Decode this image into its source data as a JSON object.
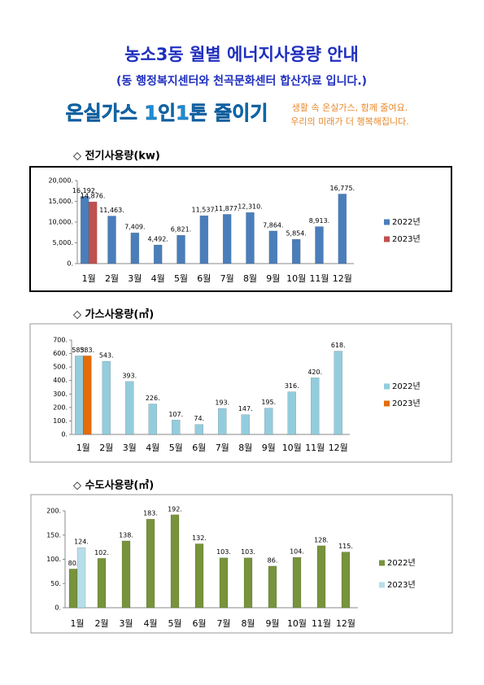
{
  "header": {
    "title": "농소3동 월별 에너지사용량 안내",
    "subtitle": "(동 행정복지센터와 천곡문화센터 합산자료 입니다.)",
    "banner": {
      "slogan": "온실가스 1인1톤 줄이기",
      "lines": [
        "생활 속 온실가스, 함께 줄여요.",
        "우리의 미래가 더 행복해집니다."
      ]
    }
  },
  "chart_data": [
    {
      "type": "bar",
      "title": "◇ 전기사용량(kw)",
      "categories": [
        "1월",
        "2월",
        "3월",
        "4월",
        "5월",
        "6월",
        "7월",
        "8월",
        "9월",
        "10월",
        "11월",
        "12월"
      ],
      "series": [
        {
          "name": "2022년",
          "color": "#4a7ebb",
          "values": [
            16192,
            11463,
            7409,
            4492,
            6821,
            11537,
            11877,
            12310,
            7864,
            5854,
            8913,
            16775
          ],
          "value_labels": [
            "16,192.",
            "11,463.",
            "7,409.",
            "4,492.",
            "6,821.",
            "11,537.",
            "11,877.",
            "12,310.",
            "7,864.",
            "5,854.",
            "8,913.",
            "16,775."
          ]
        },
        {
          "name": "2023년",
          "color": "#c0504d",
          "values": [
            14876,
            null,
            null,
            null,
            null,
            null,
            null,
            null,
            null,
            null,
            null,
            null
          ],
          "value_labels": [
            "14,876.",
            null,
            null,
            null,
            null,
            null,
            null,
            null,
            null,
            null,
            null,
            null
          ]
        }
      ],
      "ylim": [
        0,
        20000
      ],
      "yticks": [
        {
          "value": 0,
          "label": "0."
        },
        {
          "value": 5000,
          "label": "5,000."
        },
        {
          "value": 10000,
          "label": "10,000."
        },
        {
          "value": 15000,
          "label": "15,000."
        },
        {
          "value": 20000,
          "label": "20,000."
        }
      ]
    },
    {
      "type": "bar",
      "title": "◇ 가스사용량(㎥)",
      "categories": [
        "1월",
        "2월",
        "3월",
        "4월",
        "5월",
        "6월",
        "7월",
        "8월",
        "9월",
        "10월",
        "11월",
        "12월"
      ],
      "series": [
        {
          "name": "2022년",
          "color": "#93cddd",
          "values": [
            583,
            543,
            393,
            226,
            107,
            74,
            193,
            147,
            195,
            316,
            420,
            618
          ],
          "value_labels": [
            "583.",
            "543.",
            "393.",
            "226.",
            "107.",
            "74.",
            "193.",
            "147.",
            "195.",
            "316.",
            "420.",
            "618."
          ]
        },
        {
          "name": "2023년",
          "color": "#e46c0a",
          "values": [
            583,
            null,
            null,
            null,
            null,
            null,
            null,
            null,
            null,
            null,
            null,
            null
          ],
          "value_labels": [
            "583.",
            null,
            null,
            null,
            null,
            null,
            null,
            null,
            null,
            null,
            null,
            null
          ]
        }
      ],
      "ylim": [
        0,
        700
      ],
      "yticks": [
        {
          "value": 0,
          "label": "0."
        },
        {
          "value": 100,
          "label": "100."
        },
        {
          "value": 200,
          "label": "200."
        },
        {
          "value": 300,
          "label": "300."
        },
        {
          "value": 400,
          "label": "400."
        },
        {
          "value": 500,
          "label": "500."
        },
        {
          "value": 600,
          "label": "600."
        },
        {
          "value": 700,
          "label": "700."
        }
      ]
    },
    {
      "type": "bar",
      "title": "◇ 수도사용량(㎥)",
      "categories": [
        "1월",
        "2월",
        "3월",
        "4월",
        "5월",
        "6월",
        "7월",
        "8월",
        "9월",
        "10월",
        "11월",
        "12월"
      ],
      "series": [
        {
          "name": "2022년",
          "color": "#77933c",
          "values": [
            80,
            102,
            138,
            183,
            192,
            132,
            103,
            103,
            86,
            104,
            128,
            115
          ],
          "value_labels": [
            "80.",
            "102.",
            "138.",
            "183.",
            "192.",
            "132.",
            "103.",
            "103.",
            "86.",
            "104.",
            "128.",
            "115."
          ]
        },
        {
          "name": "2023년",
          "color": "#b7dee8",
          "values": [
            124,
            null,
            null,
            null,
            null,
            null,
            null,
            null,
            null,
            null,
            null,
            null
          ],
          "value_labels": [
            "124.",
            null,
            null,
            null,
            null,
            null,
            null,
            null,
            null,
            null,
            null,
            null
          ]
        }
      ],
      "ylim": [
        0,
        200
      ],
      "yticks": [
        {
          "value": 0,
          "label": "0."
        },
        {
          "value": 50,
          "label": "50."
        },
        {
          "value": 100,
          "label": "100."
        },
        {
          "value": 150,
          "label": "150."
        },
        {
          "value": 200,
          "label": "200."
        }
      ]
    }
  ]
}
